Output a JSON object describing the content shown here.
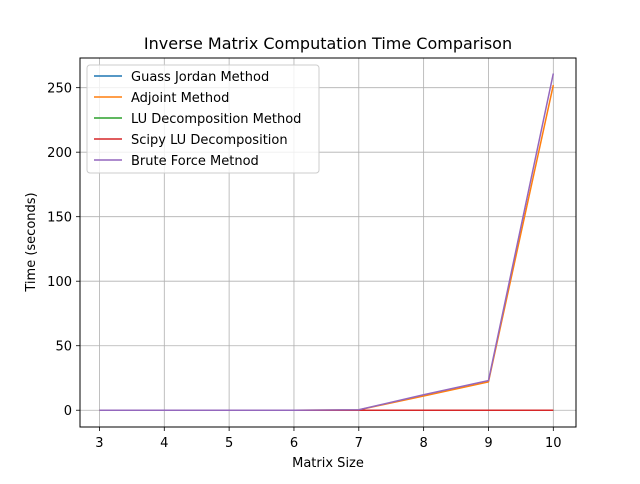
{
  "chart_data": {
    "type": "line",
    "title": "Inverse Matrix Computation Time Comparison",
    "xlabel": "Matrix Size",
    "ylabel": "Time (seconds)",
    "xlim": [
      2.7,
      10.35
    ],
    "ylim": [
      -13,
      273
    ],
    "xticks": [
      3,
      4,
      5,
      6,
      7,
      8,
      9,
      10
    ],
    "yticks": [
      0,
      50,
      100,
      150,
      200,
      250
    ],
    "grid": true,
    "legend": {
      "placement": "top-left"
    },
    "x": [
      3,
      4,
      5,
      6,
      7,
      8,
      9,
      10
    ],
    "series": [
      {
        "name": "Guass Jordan Method",
        "color": "#1f77b4",
        "values": [
          0,
          0,
          0,
          0,
          0,
          0,
          0,
          0
        ]
      },
      {
        "name": "Adjoint Method",
        "color": "#ff7f0e",
        "values": [
          0,
          0,
          0,
          0,
          0.3,
          11,
          22,
          252
        ]
      },
      {
        "name": "LU Decomposition Method",
        "color": "#2ca02c",
        "values": [
          0,
          0,
          0,
          0,
          0,
          0,
          0,
          0
        ]
      },
      {
        "name": "Scipy LU Decomposition",
        "color": "#d62728",
        "values": [
          0,
          0,
          0,
          0,
          0,
          0,
          0,
          0
        ]
      },
      {
        "name": "Brute Force Metnod",
        "color": "#9467bd",
        "values": [
          0,
          0,
          0,
          0,
          0.4,
          12,
          23,
          261
        ]
      }
    ]
  }
}
